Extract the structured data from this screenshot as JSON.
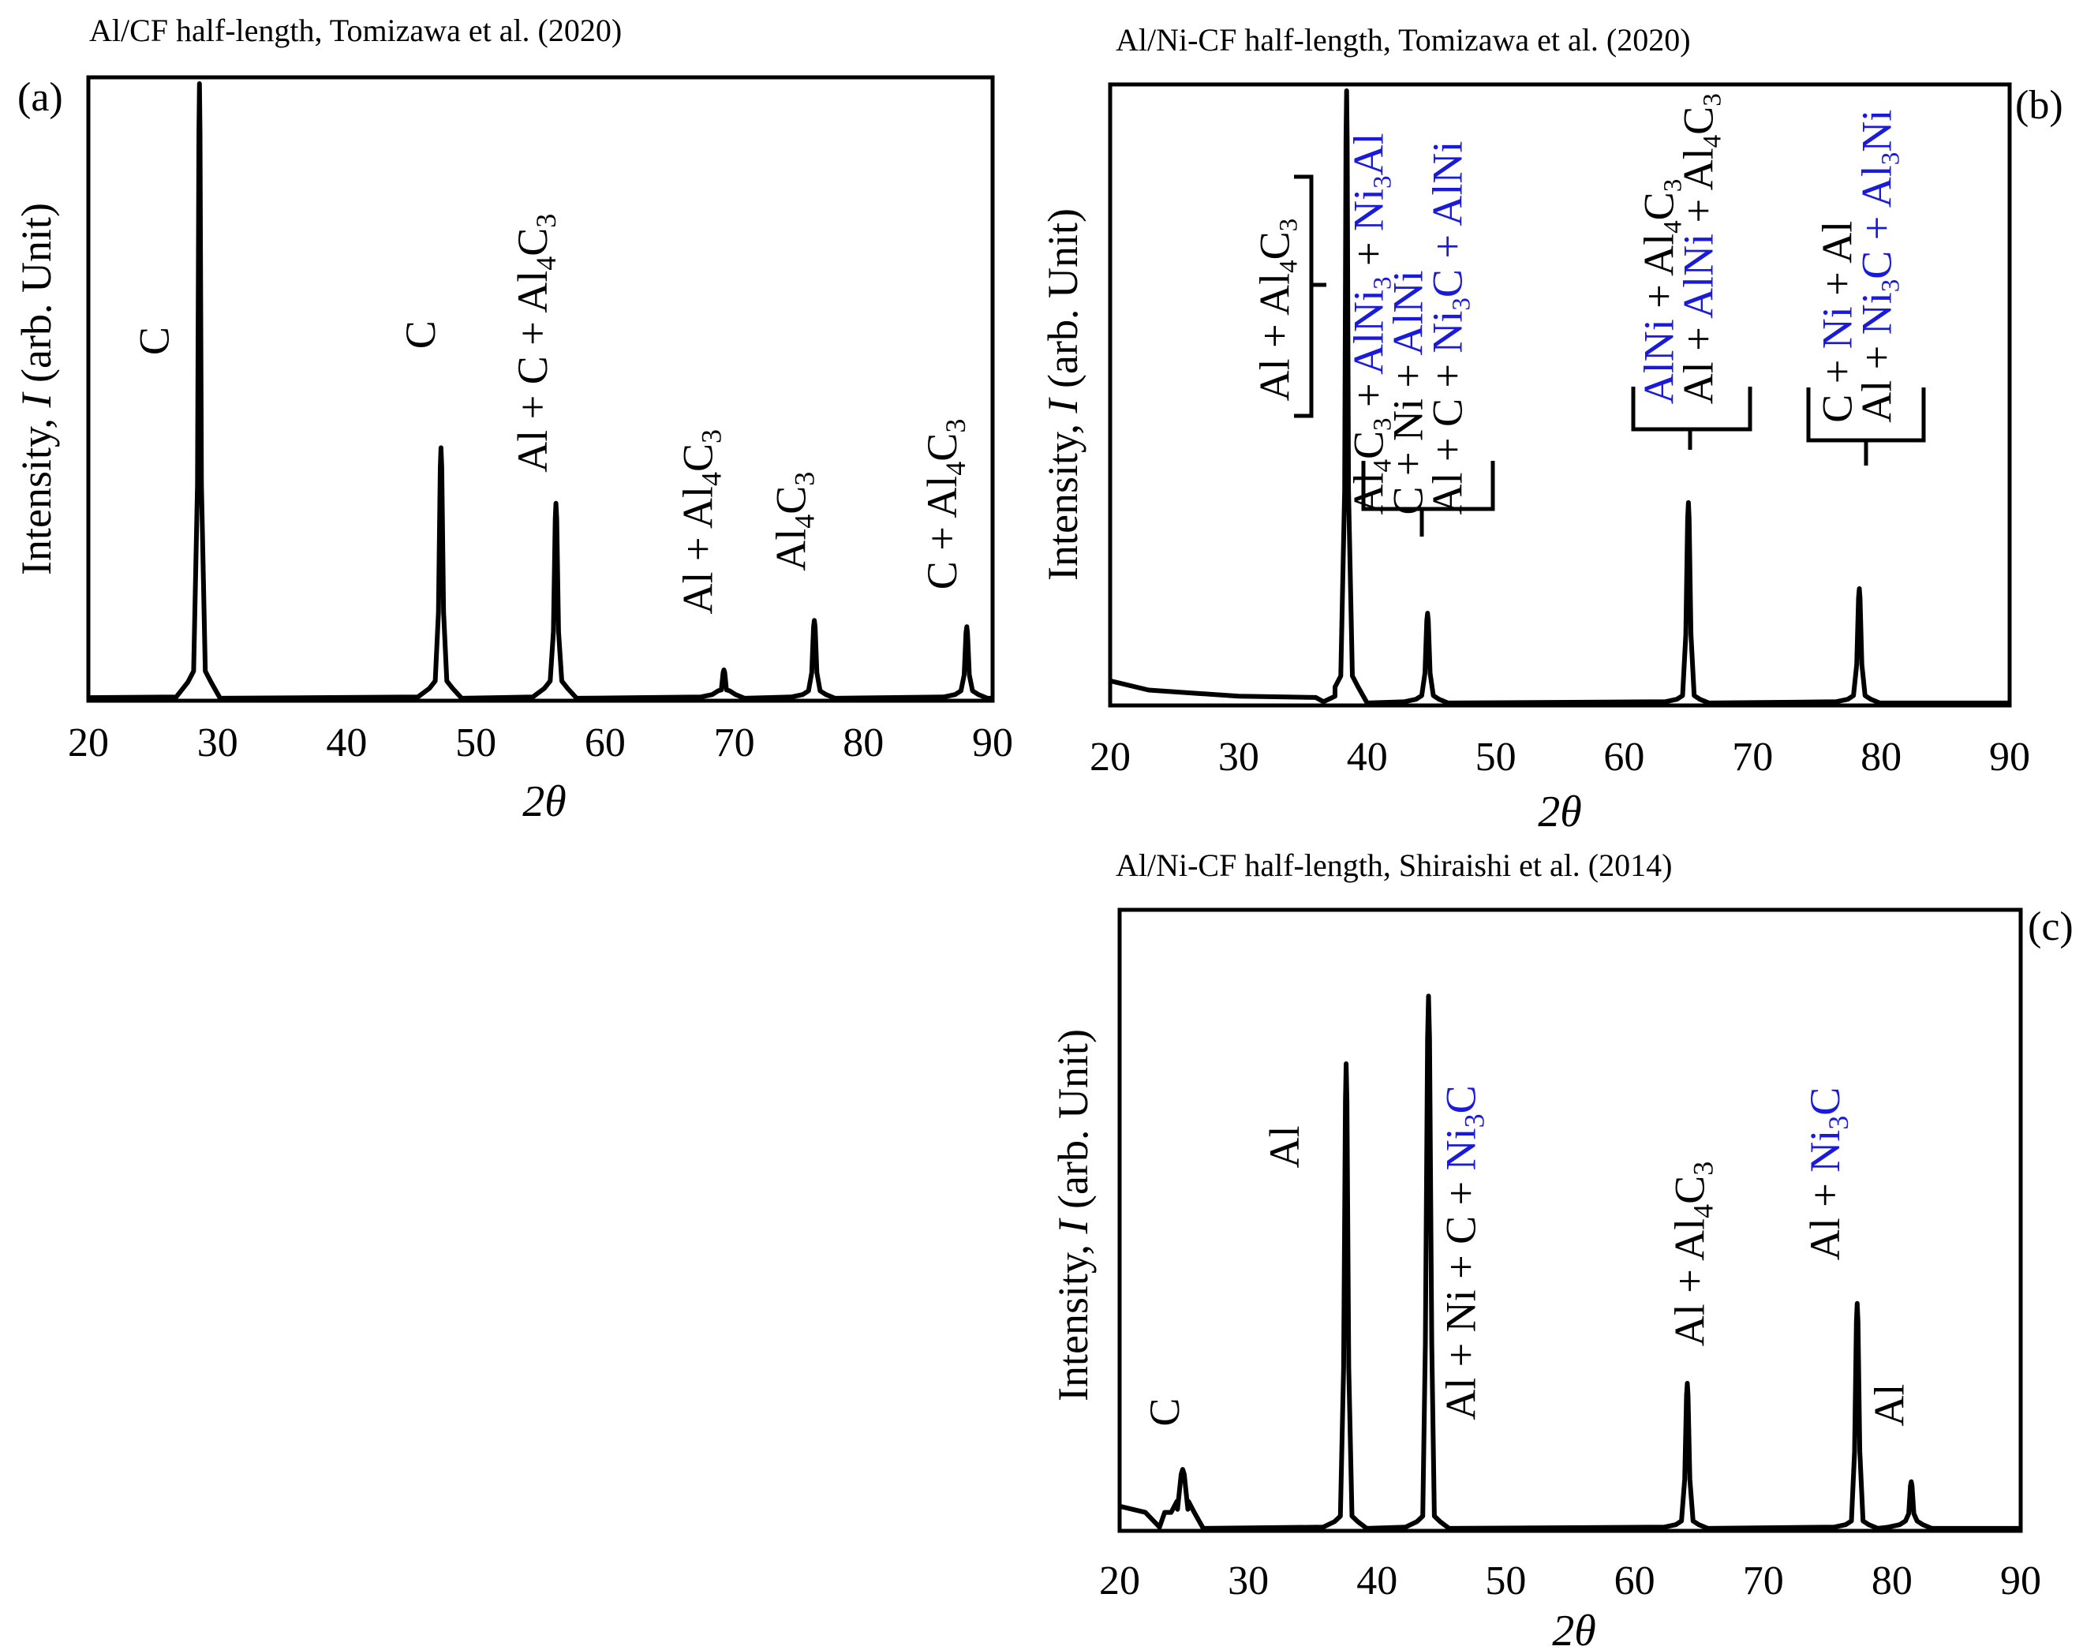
{
  "colors": {
    "ink": "#000000",
    "highlight": "#1a1adb",
    "background": "#ffffff"
  },
  "chart_data": [
    {
      "type": "line",
      "panel": "(a)",
      "title": "Al/CF half-length,  Tomizawa et al. (2020)",
      "xlabel": "2θ",
      "ylabel": "Intensity, I (arb. Unit)",
      "xlim": [
        20,
        90
      ],
      "ylim": [
        0,
        100
      ],
      "xticks": [
        "20",
        "30",
        "40",
        "50",
        "60",
        "70",
        "80",
        "90"
      ],
      "baseline": 0.5,
      "peaks": [
        {
          "x": 28.6,
          "h": 100,
          "w": 0.15,
          "base": 3
        },
        {
          "x": 47.3,
          "h": 41,
          "w": 0.2,
          "base": 2
        },
        {
          "x": 56.2,
          "h": 32,
          "w": 0.2,
          "base": 2
        },
        {
          "x": 69.2,
          "h": 5,
          "w": 0.2,
          "base": 1
        },
        {
          "x": 76.2,
          "h": 13,
          "w": 0.2,
          "base": 1
        },
        {
          "x": 88.0,
          "h": 12,
          "w": 0.2,
          "base": 1
        }
      ],
      "labels": [
        {
          "x": 26.2,
          "y": 56,
          "parts": [
            {
              "t": "C"
            }
          ]
        },
        {
          "x": 46.8,
          "y": 57,
          "parts": [
            {
              "t": "C"
            }
          ]
        },
        {
          "x": 55.5,
          "y": 37,
          "parts": [
            {
              "t": "Al + C + Al"
            },
            {
              "t": "4",
              "sub": true
            },
            {
              "t": "C"
            },
            {
              "t": "3",
              "sub": true
            }
          ]
        },
        {
          "x": 68.3,
          "y": 14,
          "parts": [
            {
              "t": "Al + Al"
            },
            {
              "t": "4",
              "sub": true
            },
            {
              "t": "C"
            },
            {
              "t": "3",
              "sub": true
            }
          ]
        },
        {
          "x": 75.5,
          "y": 21,
          "parts": [
            {
              "t": "Al"
            },
            {
              "t": "4",
              "sub": true
            },
            {
              "t": "C"
            },
            {
              "t": "3",
              "sub": true
            }
          ]
        },
        {
          "x": 87.2,
          "y": 18,
          "parts": [
            {
              "t": "C + Al"
            },
            {
              "t": "4",
              "sub": true
            },
            {
              "t": "C"
            },
            {
              "t": "3",
              "sub": true
            }
          ]
        }
      ]
    },
    {
      "type": "line",
      "panel": "(b)",
      "title": "Al/Ni-CF half-length,  Tomizawa et al. (2020)",
      "xlabel": "2θ",
      "ylabel": "Intensity, I (arb. Unit)",
      "xlim": [
        20,
        90
      ],
      "ylim": [
        0,
        100
      ],
      "xticks": [
        "20",
        "30",
        "40",
        "50",
        "60",
        "70",
        "80",
        "90"
      ],
      "background_curve": [
        [
          20,
          4
        ],
        [
          23,
          2.5
        ],
        [
          30,
          1.5
        ],
        [
          36,
          1.3
        ],
        [
          37.5,
          1.5
        ]
      ],
      "peaks": [
        {
          "x": 38.4,
          "h": 100,
          "w": 0.15,
          "base": 3
        },
        {
          "x": 44.7,
          "h": 15,
          "w": 0.2,
          "base": 1
        },
        {
          "x": 65.0,
          "h": 33,
          "w": 0.2,
          "base": 1
        },
        {
          "x": 78.3,
          "h": 19,
          "w": 0.2,
          "base": 1
        }
      ],
      "labels": [
        {
          "x": 33.9,
          "y": 49.5,
          "lines": [
            [
              {
                "t": "Al + Al"
              },
              {
                "t": "4",
                "sub": true
              },
              {
                "t": "C"
              },
              {
                "t": "3",
                "sub": true
              }
            ]
          ]
        },
        {
          "x": 41.2,
          "y": 31,
          "lines": [
            [
              {
                "t": "Al"
              },
              {
                "t": "4",
                "sub": true
              },
              {
                "t": "C"
              },
              {
                "t": "3",
                "sub": true
              },
              {
                "t": " + "
              },
              {
                "t": "AlNi",
                "blue": true
              },
              {
                "t": "3",
                "sub": true,
                "blue": true
              },
              {
                "t": " + "
              },
              {
                "t": "Ni",
                "blue": true
              },
              {
                "t": "3",
                "sub": true,
                "blue": true
              },
              {
                "t": "Al",
                "blue": true
              }
            ],
            [
              {
                "t": "C + Ni + "
              },
              {
                "t": "AlNi",
                "blue": true
              }
            ],
            [
              {
                "t": "Al + C + "
              },
              {
                "t": "Ni",
                "blue": true
              },
              {
                "t": "3",
                "sub": true,
                "blue": true
              },
              {
                "t": "C + AlNi",
                "blue": true
              }
            ]
          ]
        },
        {
          "x": 63.8,
          "y": 49,
          "lines": [
            [
              {
                "t": "AlNi",
                "blue": true
              },
              {
                "t": " + Al"
              },
              {
                "t": "4",
                "sub": true
              },
              {
                "t": "C"
              },
              {
                "t": "3",
                "sub": true
              }
            ],
            [
              {
                "t": "Al + "
              },
              {
                "t": "AlNi",
                "blue": true
              },
              {
                "t": " + Al"
              },
              {
                "t": "4",
                "sub": true
              },
              {
                "t": "C"
              },
              {
                "t": "3",
                "sub": true
              }
            ]
          ]
        },
        {
          "x": 77.7,
          "y": 46,
          "lines": [
            [
              {
                "t": "C + "
              },
              {
                "t": "Ni",
                "blue": true
              },
              {
                "t": " + Al"
              }
            ],
            [
              {
                "t": "Al + "
              },
              {
                "t": "Ni",
                "blue": true
              },
              {
                "t": "3",
                "sub": true,
                "blue": true
              },
              {
                "t": "C + Al",
                "blue": true
              },
              {
                "t": "3",
                "sub": true,
                "blue": true
              },
              {
                "t": "Ni",
                "blue": true
              }
            ]
          ]
        }
      ]
    },
    {
      "type": "line",
      "panel": "(c)",
      "title": "Al/Ni-CF half-length,  Shiraishi et al. (2014)",
      "xlabel": "2θ",
      "ylabel": "Intensity, I (arb. Unit)",
      "xlim": [
        20,
        90
      ],
      "ylim": [
        0,
        100
      ],
      "xticks": [
        "20",
        "30",
        "40",
        "50",
        "60",
        "70",
        "80",
        "90"
      ],
      "background_curve": [
        [
          20,
          4
        ],
        [
          22,
          3
        ],
        [
          23.5,
          3
        ]
      ],
      "peaks": [
        {
          "x": 24.9,
          "h": 10,
          "w": 0.4,
          "base": 3
        },
        {
          "x": 37.6,
          "h": 76,
          "w": 0.2,
          "base": 1.5
        },
        {
          "x": 44.0,
          "h": 87,
          "w": 0.25,
          "base": 1.5
        },
        {
          "x": 64.1,
          "h": 24,
          "w": 0.2,
          "base": 1
        },
        {
          "x": 77.3,
          "h": 37,
          "w": 0.2,
          "base": 1
        },
        {
          "x": 81.5,
          "h": 8,
          "w": 0.2,
          "base": 1
        }
      ],
      "labels": [
        {
          "x": 24.6,
          "y": 17,
          "parts": [
            {
              "t": "C"
            }
          ]
        },
        {
          "x": 33.9,
          "y": 59,
          "parts": [
            {
              "t": "Al"
            }
          ]
        },
        {
          "x": 47.6,
          "y": 18,
          "parts": [
            {
              "t": "Al + Ni + C + "
            },
            {
              "t": "Ni",
              "blue": true
            },
            {
              "t": "3",
              "sub": true,
              "blue": true
            },
            {
              "t": "C",
              "blue": true
            }
          ]
        },
        {
          "x": 65.4,
          "y": 30,
          "parts": [
            {
              "t": "Al + Al"
            },
            {
              "t": "4",
              "sub": true
            },
            {
              "t": "C"
            },
            {
              "t": "3",
              "sub": true
            }
          ]
        },
        {
          "x": 75.9,
          "y": 44,
          "parts": [
            {
              "t": "Al + "
            },
            {
              "t": "Ni",
              "blue": true
            },
            {
              "t": "3",
              "sub": true,
              "blue": true
            },
            {
              "t": "C",
              "blue": true
            }
          ]
        },
        {
          "x": 80.9,
          "y": 17,
          "parts": [
            {
              "t": "Al"
            }
          ]
        }
      ]
    }
  ]
}
